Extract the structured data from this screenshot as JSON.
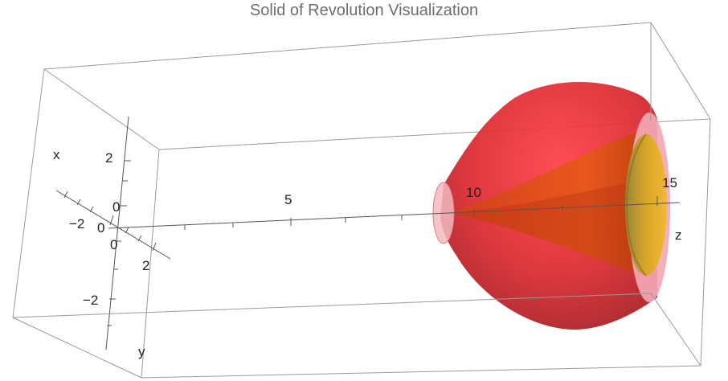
{
  "title": "Solid of Revolution Visualization",
  "axes": {
    "x": {
      "label": "x",
      "tick_labels": [
        "2",
        "0",
        "−2"
      ]
    },
    "y": {
      "label": "y",
      "tick_labels": [
        "−2",
        "0",
        "2"
      ]
    },
    "z": {
      "label": "z",
      "tick_labels": [
        "0",
        "5",
        "10",
        "15"
      ]
    }
  },
  "colors": {
    "outer_surface": "#e0242c",
    "inner_surface": "#e8581a",
    "inner_cap": "#f0b000",
    "end_caps": "#f4b8c0",
    "box": "#9a9a9a"
  }
}
